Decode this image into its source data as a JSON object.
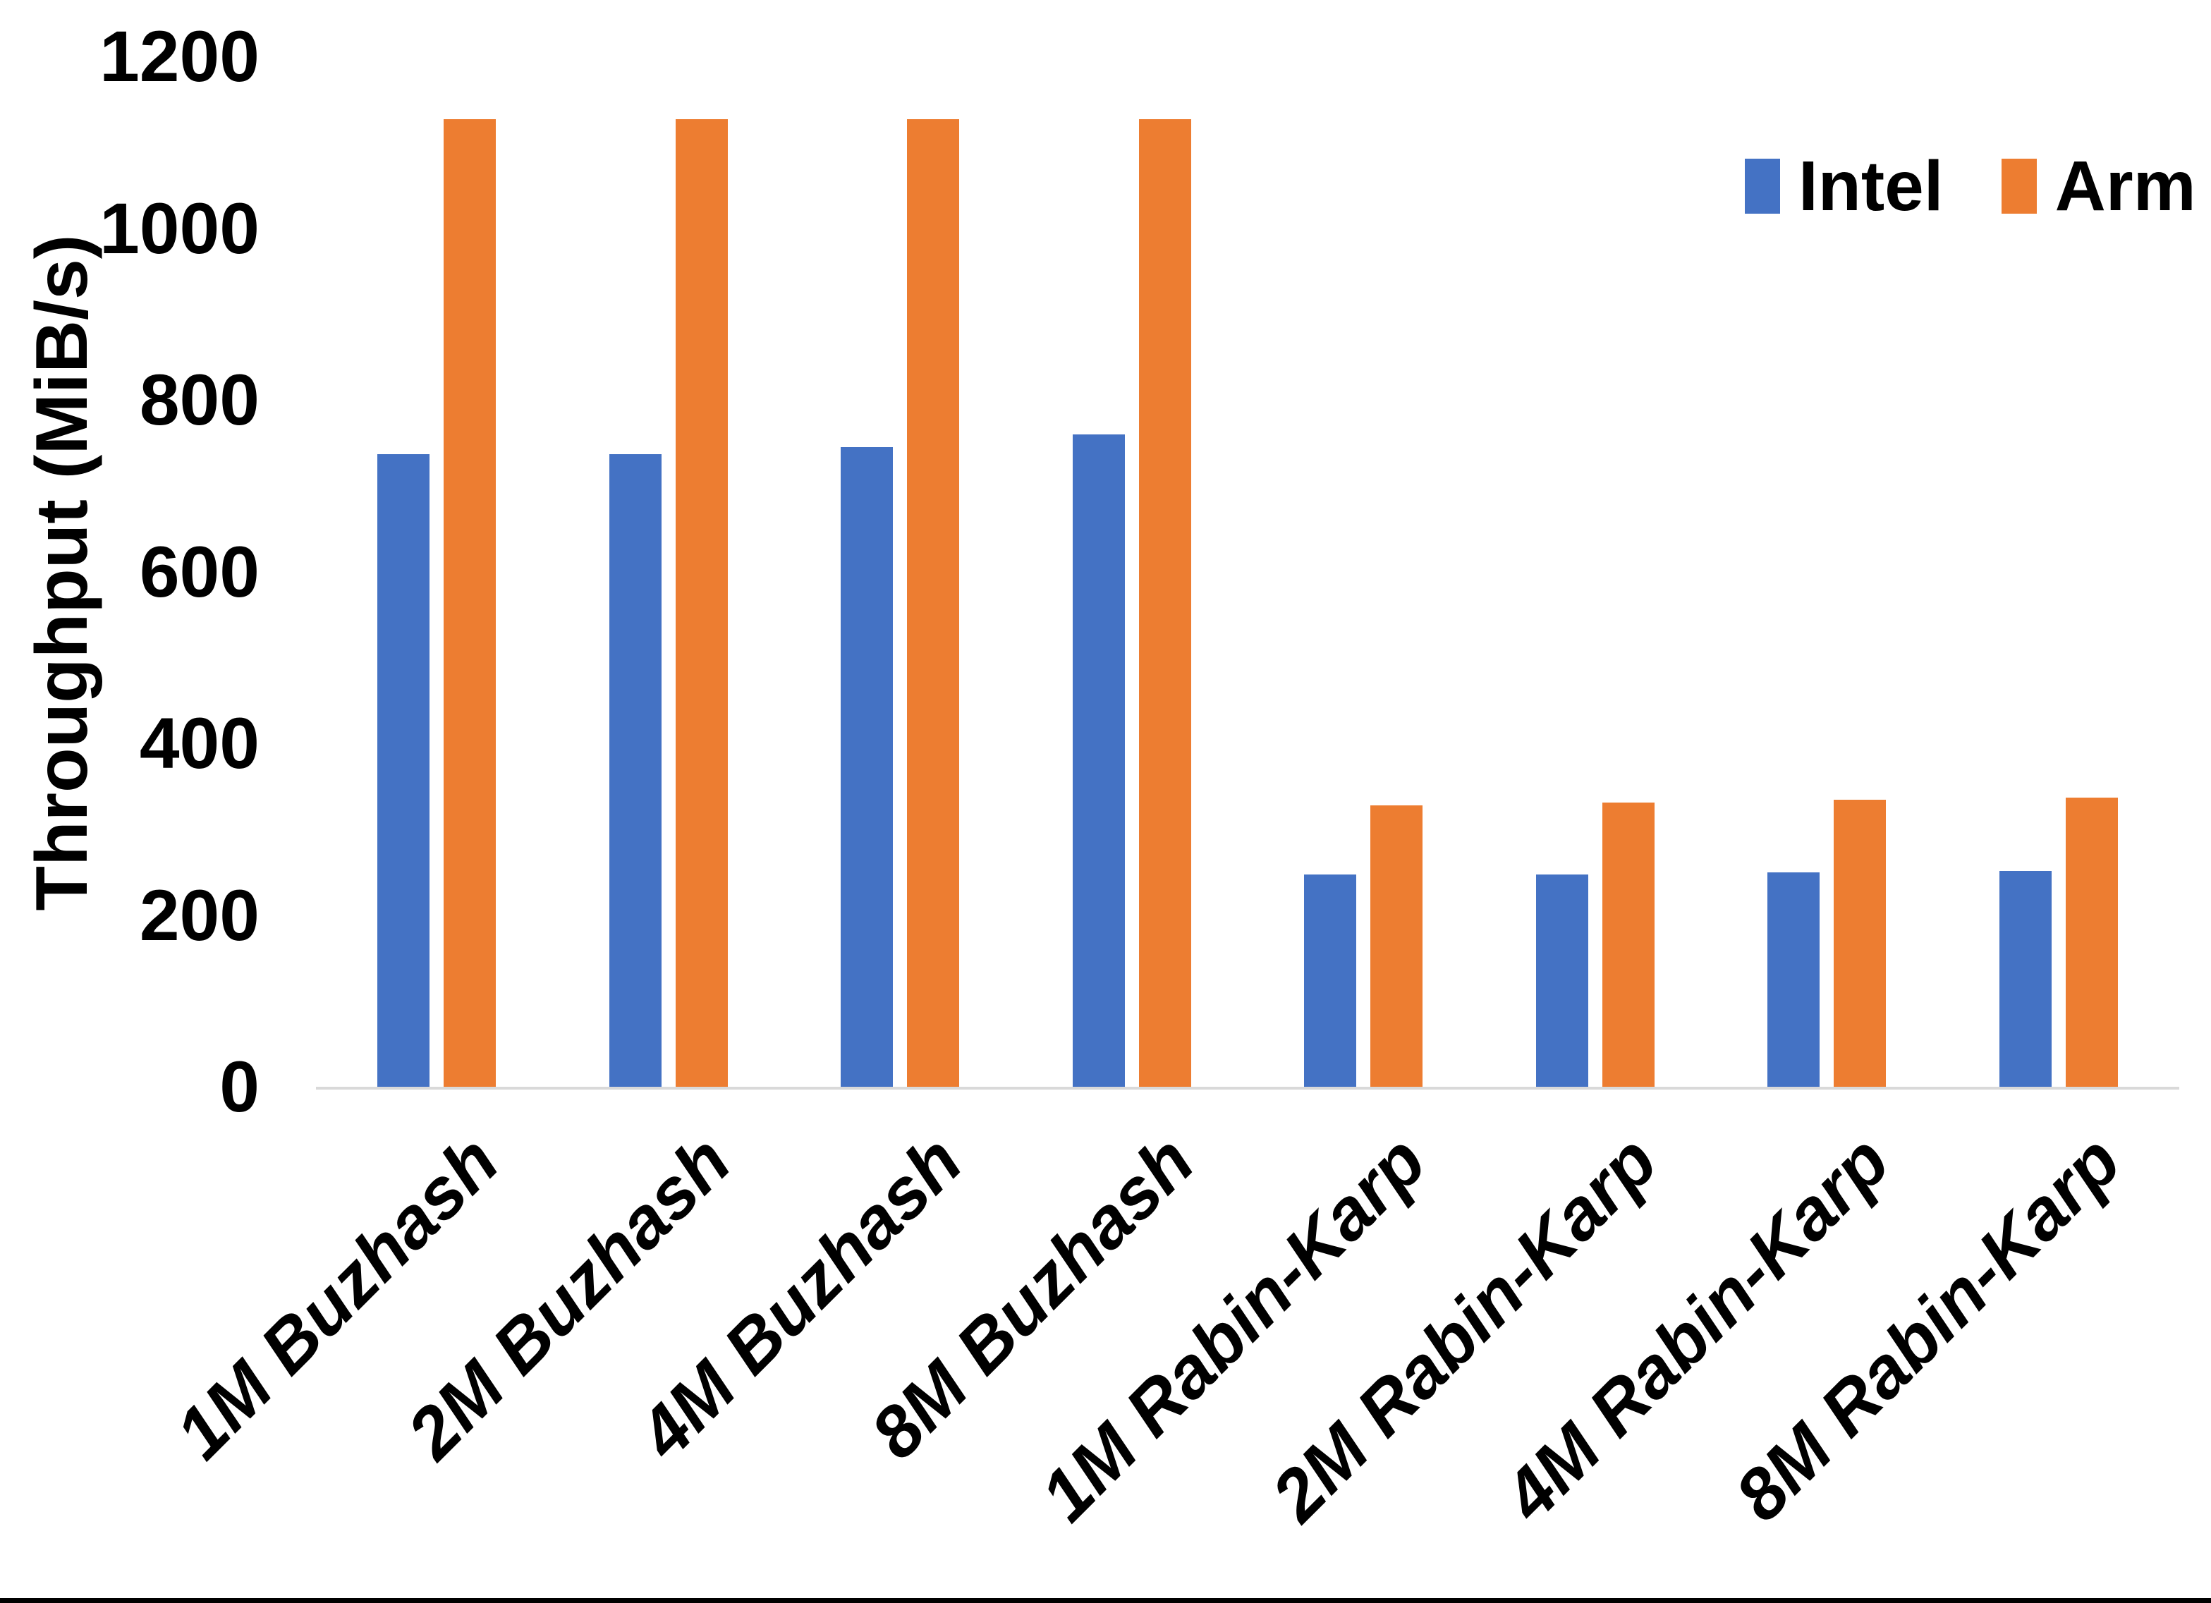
{
  "chart_data": {
    "type": "bar",
    "ylabel": "Throughput (MiB/s)",
    "ylim": [
      0,
      1200
    ],
    "yticks": [
      0,
      200,
      400,
      600,
      800,
      1000,
      1200
    ],
    "categories": [
      "1M Buzhash",
      "2M Buzhash",
      "4M Buzhash",
      "8M Buzhash",
      "1M Rabin-Karp",
      "2M Rabin-Karp",
      "4M Rabin-Karp",
      "8M Rabin-Karp"
    ],
    "series": [
      {
        "name": "Intel",
        "color": "#4472C4",
        "values": [
          737,
          737,
          745,
          760,
          247,
          247,
          250,
          251
        ]
      },
      {
        "name": "Arm",
        "color": "#ED7D31",
        "values": [
          1127,
          1127,
          1127,
          1127,
          328,
          331,
          334,
          337
        ]
      }
    ],
    "legend_position": "top-right",
    "grid": false,
    "axis_line_color": "#D9D9D9",
    "text_color": "#000000"
  }
}
